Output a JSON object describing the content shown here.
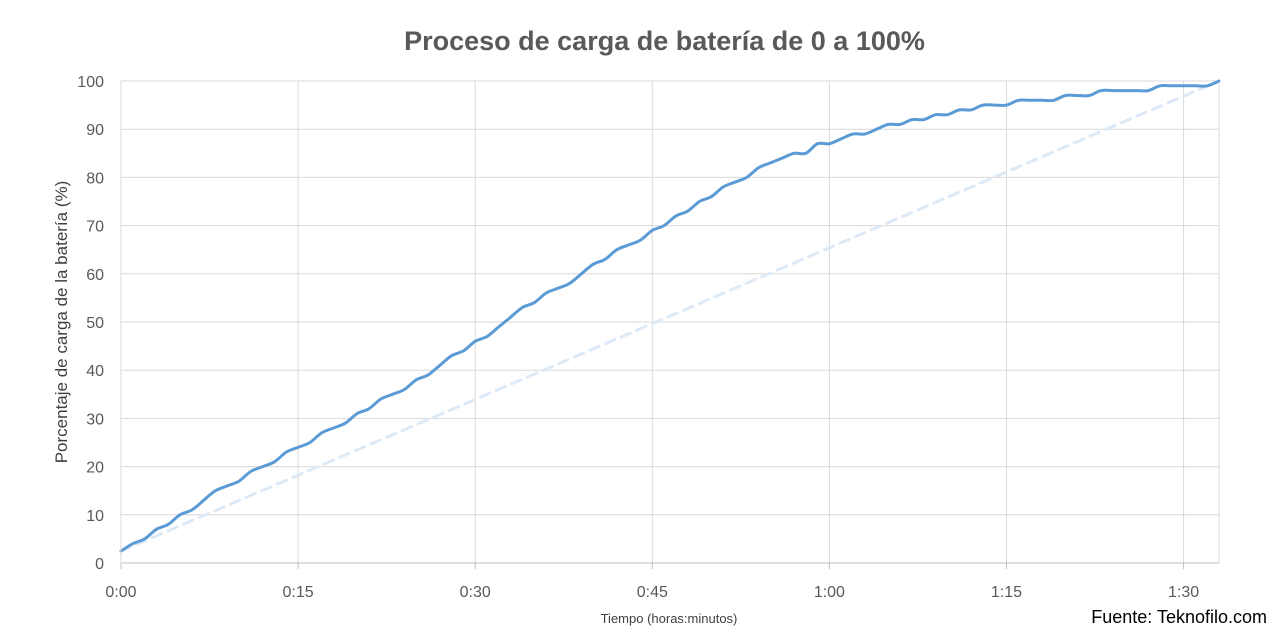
{
  "chart_data": {
    "type": "line",
    "title": "Proceso de carga de batería de 0 a 100%",
    "xlabel": "Tiempo (horas:minutos)",
    "ylabel": "Porcentaje de carga de la batería (%)",
    "xlim": [
      0,
      93
    ],
    "ylim": [
      0,
      100
    ],
    "x_ticks": [
      0,
      15,
      30,
      45,
      60,
      75,
      90
    ],
    "x_tick_labels": [
      "0:00",
      "0:15",
      "0:30",
      "0:45",
      "1:00",
      "1:15",
      "1:30"
    ],
    "y_ticks": [
      0,
      10,
      20,
      30,
      40,
      50,
      60,
      70,
      80,
      90,
      100
    ],
    "grid": true,
    "series": [
      {
        "color": "#5b9bd5",
        "style": "solid",
        "x": [
          0,
          1,
          2,
          3,
          4,
          5,
          6,
          7,
          8,
          9,
          10,
          11,
          12,
          13,
          14,
          15,
          16,
          17,
          18,
          19,
          20,
          21,
          22,
          23,
          24,
          25,
          26,
          27,
          28,
          29,
          30,
          31,
          32,
          33,
          34,
          35,
          36,
          37,
          38,
          39,
          40,
          41,
          42,
          43,
          44,
          45,
          46,
          47,
          48,
          49,
          50,
          51,
          52,
          53,
          54,
          55,
          56,
          57,
          58,
          59,
          60,
          61,
          62,
          63,
          64,
          65,
          66,
          67,
          68,
          69,
          70,
          71,
          72,
          73,
          74,
          75,
          76,
          77,
          78,
          79,
          80,
          81,
          82,
          83,
          84,
          85,
          86,
          87,
          88,
          89,
          90,
          91,
          92,
          93
        ],
        "y": [
          2.5,
          4,
          5,
          7,
          8,
          10,
          11,
          13,
          15,
          16,
          17,
          19,
          20,
          21,
          23,
          24,
          25,
          27,
          28,
          29,
          31,
          32,
          34,
          35,
          36,
          38,
          39,
          41,
          43,
          44,
          46,
          47,
          49,
          51,
          53,
          54,
          56,
          57,
          58,
          60,
          62,
          63,
          65,
          66,
          67,
          69,
          70,
          72,
          73,
          75,
          76,
          78,
          79,
          80,
          82,
          83,
          84,
          85,
          85,
          87,
          87,
          88,
          89,
          89,
          90,
          91,
          91,
          92,
          92,
          93,
          93,
          94,
          94,
          95,
          95,
          95,
          96,
          96,
          96,
          96,
          97,
          97,
          97,
          98,
          98,
          98,
          98,
          98,
          99,
          99,
          99,
          99,
          99,
          100
        ]
      },
      {
        "color": "#dce9f6",
        "style": "dashed",
        "x": [
          0,
          93
        ],
        "y": [
          2.5,
          100
        ]
      }
    ]
  },
  "source": "Fuente: Teknofilo.com"
}
